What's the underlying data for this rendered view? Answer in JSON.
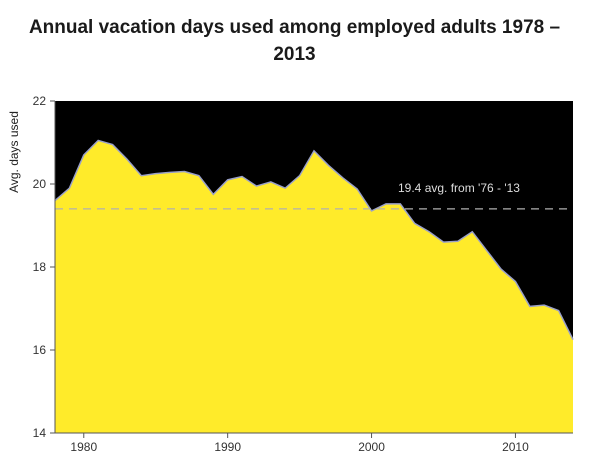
{
  "title_line1": "Annual vacation days used among employed adults 1978 –",
  "title_line2": "2013",
  "chart_data": {
    "type": "area",
    "title": "Annual vacation days used among employed adults 1978 – 2013",
    "xlabel": "",
    "ylabel": "Avg. days used",
    "xlim": [
      1978,
      2014
    ],
    "ylim": [
      14,
      22
    ],
    "x_ticks": [
      1980,
      1990,
      2000,
      2010
    ],
    "y_ticks": [
      14,
      16,
      18,
      20,
      22
    ],
    "grid": false,
    "colors": {
      "area": "#ffeb2a",
      "background": "#000000",
      "line": "#9aa0c8",
      "reference": "#b0b0b0"
    },
    "series": [
      {
        "x": [
          1978,
          1979,
          1980,
          1981,
          1982,
          1983,
          1984,
          1985,
          1986,
          1987,
          1988,
          1989,
          1990,
          1991,
          1992,
          1993,
          1994,
          1995,
          1996,
          1997,
          1998,
          1999,
          2000,
          2001,
          2002,
          2003,
          2004,
          2005,
          2006,
          2007,
          2008,
          2009,
          2010,
          2011,
          2012,
          2013,
          2014
        ],
        "values": [
          19.6,
          19.9,
          20.7,
          21.05,
          20.95,
          20.6,
          20.2,
          20.25,
          20.28,
          20.3,
          20.2,
          19.75,
          20.1,
          20.18,
          19.95,
          20.05,
          19.9,
          20.2,
          20.8,
          20.45,
          20.15,
          19.88,
          19.35,
          19.52,
          19.52,
          19.05,
          18.85,
          18.6,
          18.62,
          18.85,
          18.4,
          17.95,
          17.65,
          17.05,
          17.08,
          16.95,
          16.25
        ]
      }
    ],
    "reference_line": {
      "value": 19.4,
      "label": "19.4 avg. from '76 - '13"
    }
  }
}
